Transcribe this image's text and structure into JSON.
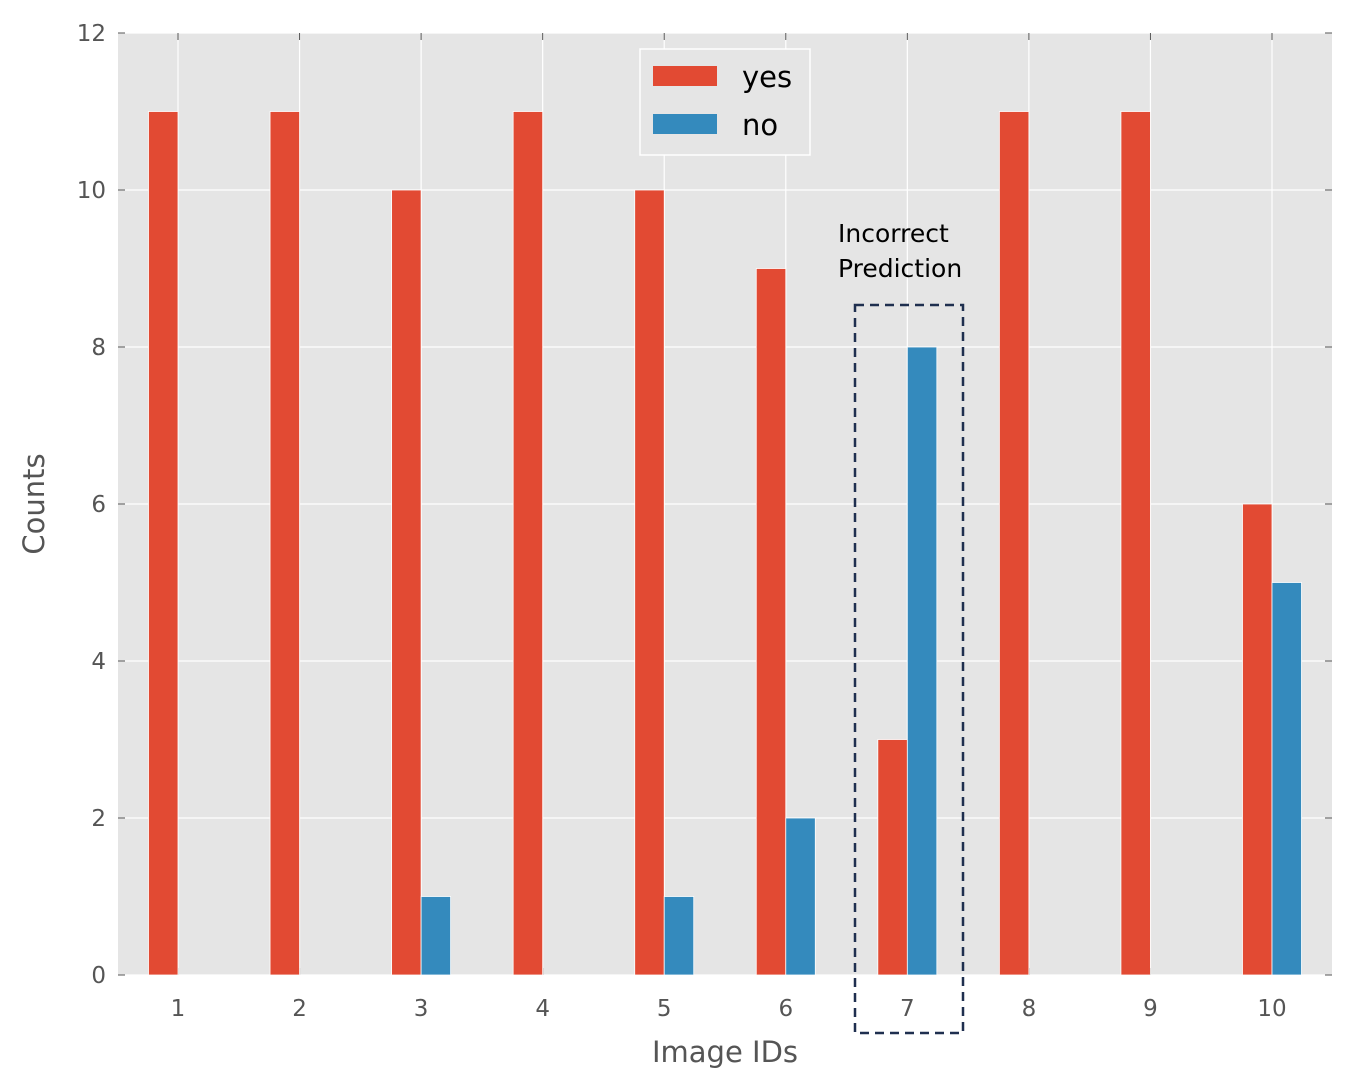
{
  "chart_data": {
    "type": "bar",
    "categories": [
      "1",
      "2",
      "3",
      "4",
      "5",
      "6",
      "7",
      "8",
      "9",
      "10"
    ],
    "series": [
      {
        "name": "yes",
        "color": "#E24A33",
        "values": [
          11,
          11,
          10,
          11,
          10,
          9,
          3,
          11,
          11,
          6
        ]
      },
      {
        "name": "no",
        "color": "#348ABD",
        "values": [
          0,
          0,
          1,
          0,
          1,
          2,
          8,
          0,
          0,
          5
        ]
      }
    ],
    "title": "",
    "xlabel": "Image IDs",
    "ylabel": "Counts",
    "ylim": [
      0,
      12
    ],
    "yticks": [
      0,
      2,
      4,
      6,
      8,
      10,
      12
    ],
    "grid": true,
    "legend_position": "top-center",
    "background_color": "#E5E5E5",
    "annotation": {
      "lines": [
        "Incorrect",
        "Prediction"
      ],
      "highlight_category": "7",
      "box_style": "dashed",
      "box_color": "#1F2F4F"
    }
  }
}
